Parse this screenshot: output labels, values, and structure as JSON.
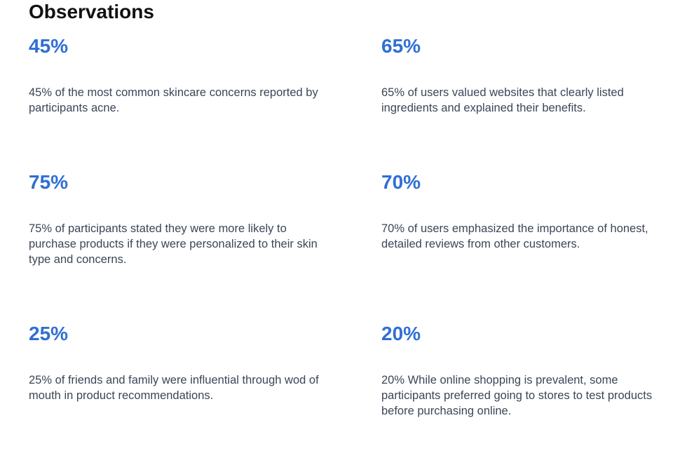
{
  "page": {
    "title": "Observations"
  },
  "observations": [
    {
      "value": "45%",
      "text": "45% of the most common skincare concerns reported by participants acne."
    },
    {
      "value": "65%",
      "text": "65% of users valued websites that clearly listed ingredients and explained their benefits."
    },
    {
      "value": "75%",
      "text": "75% of participants stated they were more likely to purchase products if they were personalized to their skin type and concerns."
    },
    {
      "value": "70%",
      "text": "70% of users emphasized the importance of honest, detailed reviews from other customers."
    },
    {
      "value": "25%",
      "text": "25% of friends and family were influential through wod of mouth in product recommendations."
    },
    {
      "value": "20%",
      "text": "20% While online shopping is prevalent, some participants preferred going to stores to test products before purchasing online."
    }
  ],
  "colors": {
    "accent": "#2f6fd3",
    "heading": "#111111",
    "body_text": "#3b4658",
    "background": "#ffffff"
  }
}
